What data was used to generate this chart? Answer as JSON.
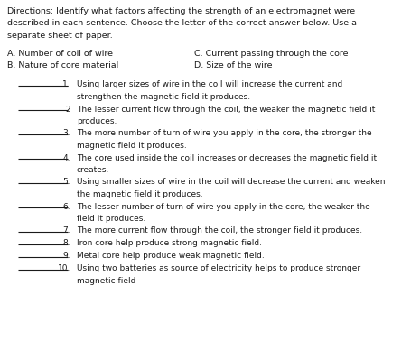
{
  "bg_color": "#ffffff",
  "text_color": "#1a1a1a",
  "directions_lines": [
    "Directions: Identify what factors affecting the strength of an electromagnet were",
    "described in each sentence. Choose the letter of the correct answer below. Use a",
    "separate sheet of paper."
  ],
  "choices_left": [
    "A. Number of coil of wire",
    "B. Nature of core material"
  ],
  "choices_right": [
    "C. Current passing through the core",
    "D. Size of the wire"
  ],
  "items": [
    {
      "num": "1.",
      "line1": "Using larger sizes of wire in the coil will increase the current and",
      "line2": "strengthen the magnetic field it produces."
    },
    {
      "num": "2",
      "line1": "The lesser current flow through the coil, the weaker the magnetic field it",
      "line2": "produces."
    },
    {
      "num": "3.",
      "line1": "The more number of turn of wire you apply in the core, the stronger the",
      "line2": "magnetic field it produces."
    },
    {
      "num": "4.",
      "line1": "The core used inside the coil increases or decreases the magnetic field it",
      "line2": "creates."
    },
    {
      "num": "5.",
      "line1": "Using smaller sizes of wire in the coil will decrease the current and weaken",
      "line2": "the magnetic field it produces."
    },
    {
      "num": "6.",
      "line1": "The lesser number of turn of wire you apply in the core, the weaker the",
      "line2": "field it produces."
    },
    {
      "num": "7.",
      "line1": "The more current flow through the coil, the stronger field it produces.",
      "line2": null
    },
    {
      "num": "8.",
      "line1": "Iron core help produce strong magnetic field.",
      "line2": null
    },
    {
      "num": "9.",
      "line1": "Metal core help produce weak magnetic field.",
      "line2": null
    },
    {
      "num": "10.",
      "line1": "Using two batteries as source of electricity helps to produce stronger",
      "line2": "magnetic field"
    }
  ],
  "fs_dir": 6.8,
  "fs_choices": 6.8,
  "fs_items": 6.5,
  "figwidth": 4.65,
  "figheight": 3.88,
  "dpi": 100
}
